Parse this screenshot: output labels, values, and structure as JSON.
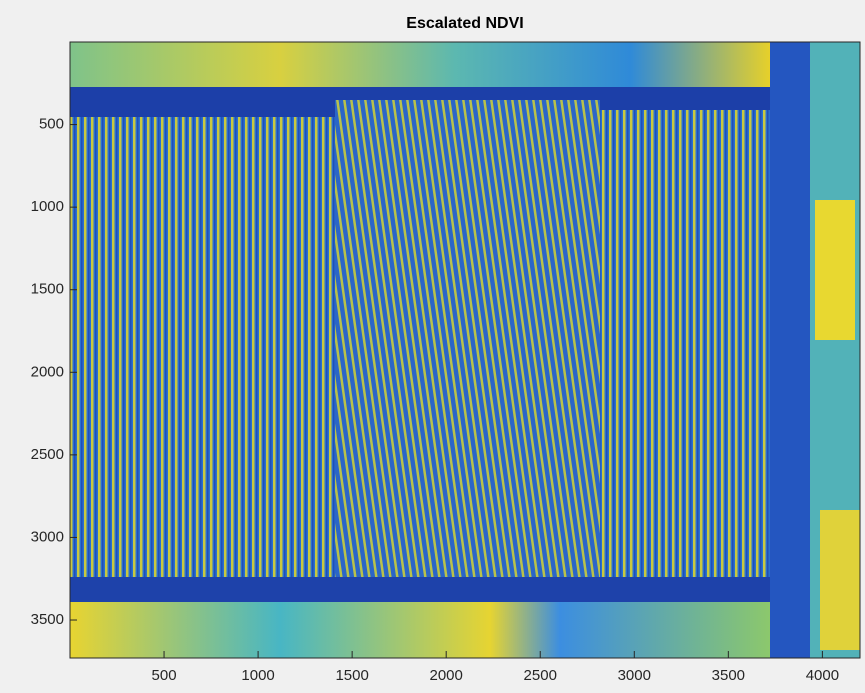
{
  "chart_data": {
    "type": "image",
    "title": "Escalated NDVI",
    "xlim": [
      0,
      4200
    ],
    "xticks": [
      500,
      1000,
      1500,
      2000,
      2500,
      3000,
      3500,
      4000
    ],
    "ylim": [
      0,
      3730
    ],
    "yticks": [
      500,
      1000,
      1500,
      2000,
      2500,
      3000,
      3500
    ],
    "y_reversed": true
  }
}
